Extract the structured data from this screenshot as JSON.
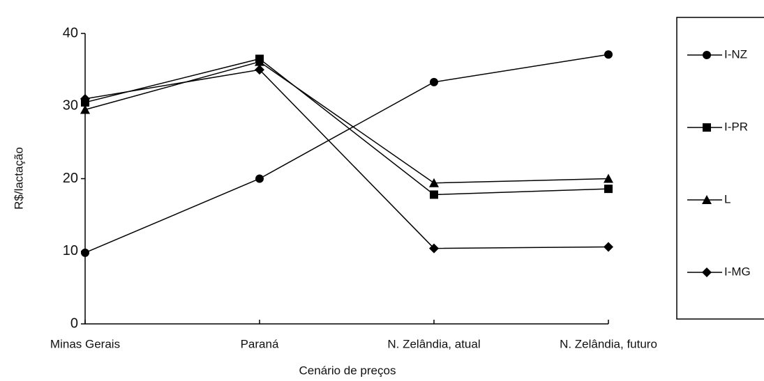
{
  "chart_data": {
    "type": "line",
    "categories": [
      "Minas Gerais",
      "Paraná",
      "N. Zelândia, atual",
      "N. Zelândia, futuro"
    ],
    "series": [
      {
        "name": "I-NZ",
        "color": "#000000",
        "marker": "circle",
        "values": [
          9.8,
          20,
          33.3,
          37.1
        ]
      },
      {
        "name": "I-PR",
        "color": "#000000",
        "marker": "square",
        "values": [
          30.5,
          36.5,
          17.8,
          18.6
        ]
      },
      {
        "name": "L",
        "color": "#000000",
        "marker": "triangle",
        "values": [
          29.5,
          36.1,
          19.4,
          20
        ]
      },
      {
        "name": "I-MG",
        "color": "#000000",
        "marker": "diamond",
        "values": [
          31,
          35,
          10.4,
          10.6
        ]
      }
    ],
    "y_label": "R$/lactação",
    "x_label": "Cenário de preços",
    "ylim": [
      0,
      40
    ],
    "yticks": [
      0,
      10,
      20,
      30,
      40
    ],
    "legend": "right"
  }
}
